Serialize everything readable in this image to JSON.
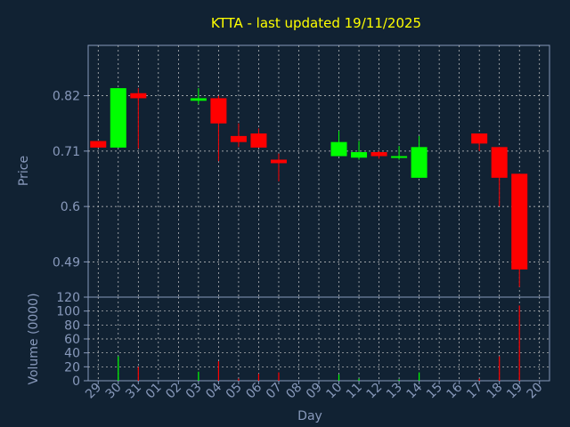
{
  "chart_data": [
    {
      "type": "candlestick",
      "title": "KTTA - last updated 19/11/2025",
      "xlabel": "",
      "ylabel": "Price",
      "yticks": [
        0.49,
        0.6,
        0.71,
        0.82
      ],
      "ylim": [
        0.42,
        0.92
      ],
      "grid": true,
      "categories": [
        "29",
        "30",
        "31",
        "01",
        "02",
        "03",
        "04",
        "05",
        "06",
        "07",
        "08",
        "09",
        "10",
        "11",
        "12",
        "13",
        "14",
        "15",
        "16",
        "17",
        "18",
        "19",
        "20"
      ],
      "candles": [
        {
          "x": "29",
          "open": 0.73,
          "close": 0.717,
          "high": 0.73,
          "low": 0.717
        },
        {
          "x": "30",
          "open": 0.717,
          "close": 0.835,
          "high": 0.835,
          "low": 0.717
        },
        {
          "x": "31",
          "open": 0.825,
          "close": 0.815,
          "high": 0.835,
          "low": 0.715
        },
        {
          "x": "03",
          "open": 0.81,
          "close": 0.815,
          "high": 0.835,
          "low": 0.803
        },
        {
          "x": "04",
          "open": 0.815,
          "close": 0.765,
          "high": 0.82,
          "low": 0.69
        },
        {
          "x": "05",
          "open": 0.74,
          "close": 0.728,
          "high": 0.765,
          "low": 0.718
        },
        {
          "x": "06",
          "open": 0.745,
          "close": 0.717,
          "high": 0.755,
          "low": 0.717
        },
        {
          "x": "07",
          "open": 0.693,
          "close": 0.686,
          "high": 0.705,
          "low": 0.65
        },
        {
          "x": "10",
          "open": 0.7,
          "close": 0.728,
          "high": 0.75,
          "low": 0.7
        },
        {
          "x": "11",
          "open": 0.697,
          "close": 0.708,
          "high": 0.73,
          "low": 0.693
        },
        {
          "x": "12",
          "open": 0.708,
          "close": 0.7,
          "high": 0.71,
          "low": 0.695
        },
        {
          "x": "13",
          "open": 0.698,
          "close": 0.7,
          "high": 0.72,
          "low": 0.693
        },
        {
          "x": "14",
          "open": 0.657,
          "close": 0.718,
          "high": 0.74,
          "low": 0.657
        },
        {
          "x": "17",
          "open": 0.745,
          "close": 0.725,
          "high": 0.745,
          "low": 0.71
        },
        {
          "x": "18",
          "open": 0.718,
          "close": 0.657,
          "high": 0.718,
          "low": 0.6
        },
        {
          "x": "19",
          "open": 0.665,
          "close": 0.475,
          "high": 0.665,
          "low": 0.44
        }
      ],
      "colors": {
        "up": "#00ff00",
        "down": "#ff0000",
        "background": "#112233",
        "axis": "#8899bb",
        "grid": "#cccccc",
        "title": "#ffff00"
      }
    },
    {
      "type": "bar",
      "title": "",
      "xlabel": "Day",
      "ylabel": "Volume (0000)",
      "yticks": [
        0,
        20,
        40,
        60,
        80,
        100,
        120
      ],
      "ylim": [
        0,
        120
      ],
      "grid": true,
      "categories": [
        "29",
        "30",
        "31",
        "01",
        "02",
        "03",
        "04",
        "05",
        "06",
        "07",
        "08",
        "09",
        "10",
        "11",
        "12",
        "13",
        "14",
        "15",
        "16",
        "17",
        "18",
        "19",
        "20"
      ],
      "series": [
        {
          "values": [
            {
              "x": "30",
              "v": 35,
              "dir": "up"
            },
            {
              "x": "31",
              "v": 20,
              "dir": "down"
            },
            {
              "x": "03",
              "v": 13,
              "dir": "up"
            },
            {
              "x": "04",
              "v": 28,
              "dir": "down"
            },
            {
              "x": "05",
              "v": 3,
              "dir": "down"
            },
            {
              "x": "06",
              "v": 10,
              "dir": "down"
            },
            {
              "x": "07",
              "v": 12,
              "dir": "down"
            },
            {
              "x": "10",
              "v": 9,
              "dir": "up"
            },
            {
              "x": "11",
              "v": 3,
              "dir": "up"
            },
            {
              "x": "13",
              "v": 2,
              "dir": "up"
            },
            {
              "x": "14",
              "v": 12,
              "dir": "up"
            },
            {
              "x": "17",
              "v": 3,
              "dir": "down"
            },
            {
              "x": "18",
              "v": 35,
              "dir": "down"
            },
            {
              "x": "19",
              "v": 108,
              "dir": "down"
            }
          ]
        }
      ]
    }
  ]
}
